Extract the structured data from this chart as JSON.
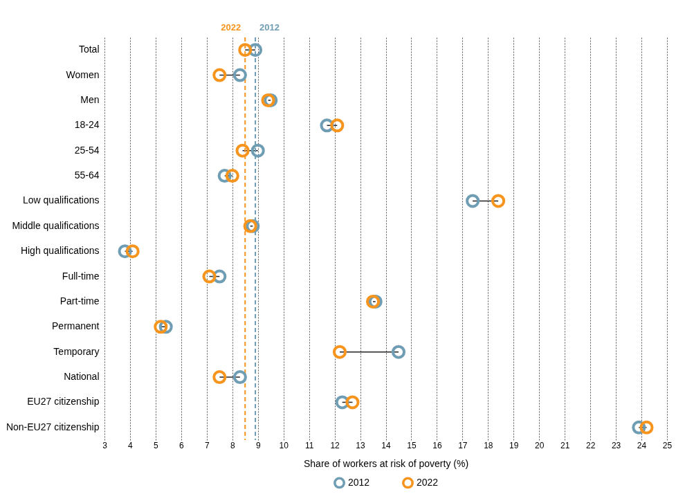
{
  "chart_data": {
    "type": "scatter",
    "orientation": "horizontal",
    "xlabel": "Share of workers at risk of poverty (%)",
    "categories": [
      "Total",
      "Women",
      "Men",
      "18-24",
      "25-54",
      "55-64",
      "Low qualifications",
      "Middle qualifications",
      "High qualifications",
      "Full-time",
      "Part-time",
      "Permanent",
      "Temporary",
      "National",
      "EU27 citizenship",
      "Non-EU27 citizenship"
    ],
    "series": [
      {
        "name": "2012",
        "color": "#6f9db3",
        "values": [
          8.9,
          8.3,
          9.5,
          11.7,
          9.0,
          7.7,
          17.4,
          8.8,
          3.8,
          7.5,
          13.6,
          5.4,
          14.5,
          8.3,
          12.3,
          23.9
        ]
      },
      {
        "name": "2022",
        "color": "#f7941d",
        "values": [
          8.5,
          7.5,
          9.4,
          12.1,
          8.4,
          8.0,
          18.4,
          8.7,
          4.1,
          7.1,
          13.5,
          5.2,
          12.2,
          7.5,
          12.7,
          24.2
        ]
      }
    ],
    "xlim": [
      3,
      25
    ],
    "xticks": [
      3,
      4,
      5,
      6,
      7,
      8,
      9,
      10,
      11,
      12,
      13,
      14,
      15,
      16,
      17,
      18,
      19,
      20,
      21,
      22,
      23,
      24,
      25
    ],
    "ref_lines": [
      {
        "axis": "x",
        "value": 8.5,
        "color": "#f7941d",
        "line_style": "dashed"
      },
      {
        "axis": "x",
        "value": 8.9,
        "color": "#6f9db3",
        "line_style": "dashed"
      }
    ],
    "annotations": [
      "2022",
      "2012"
    ],
    "grid": "x",
    "marker": "circle",
    "legend": "bottom"
  }
}
